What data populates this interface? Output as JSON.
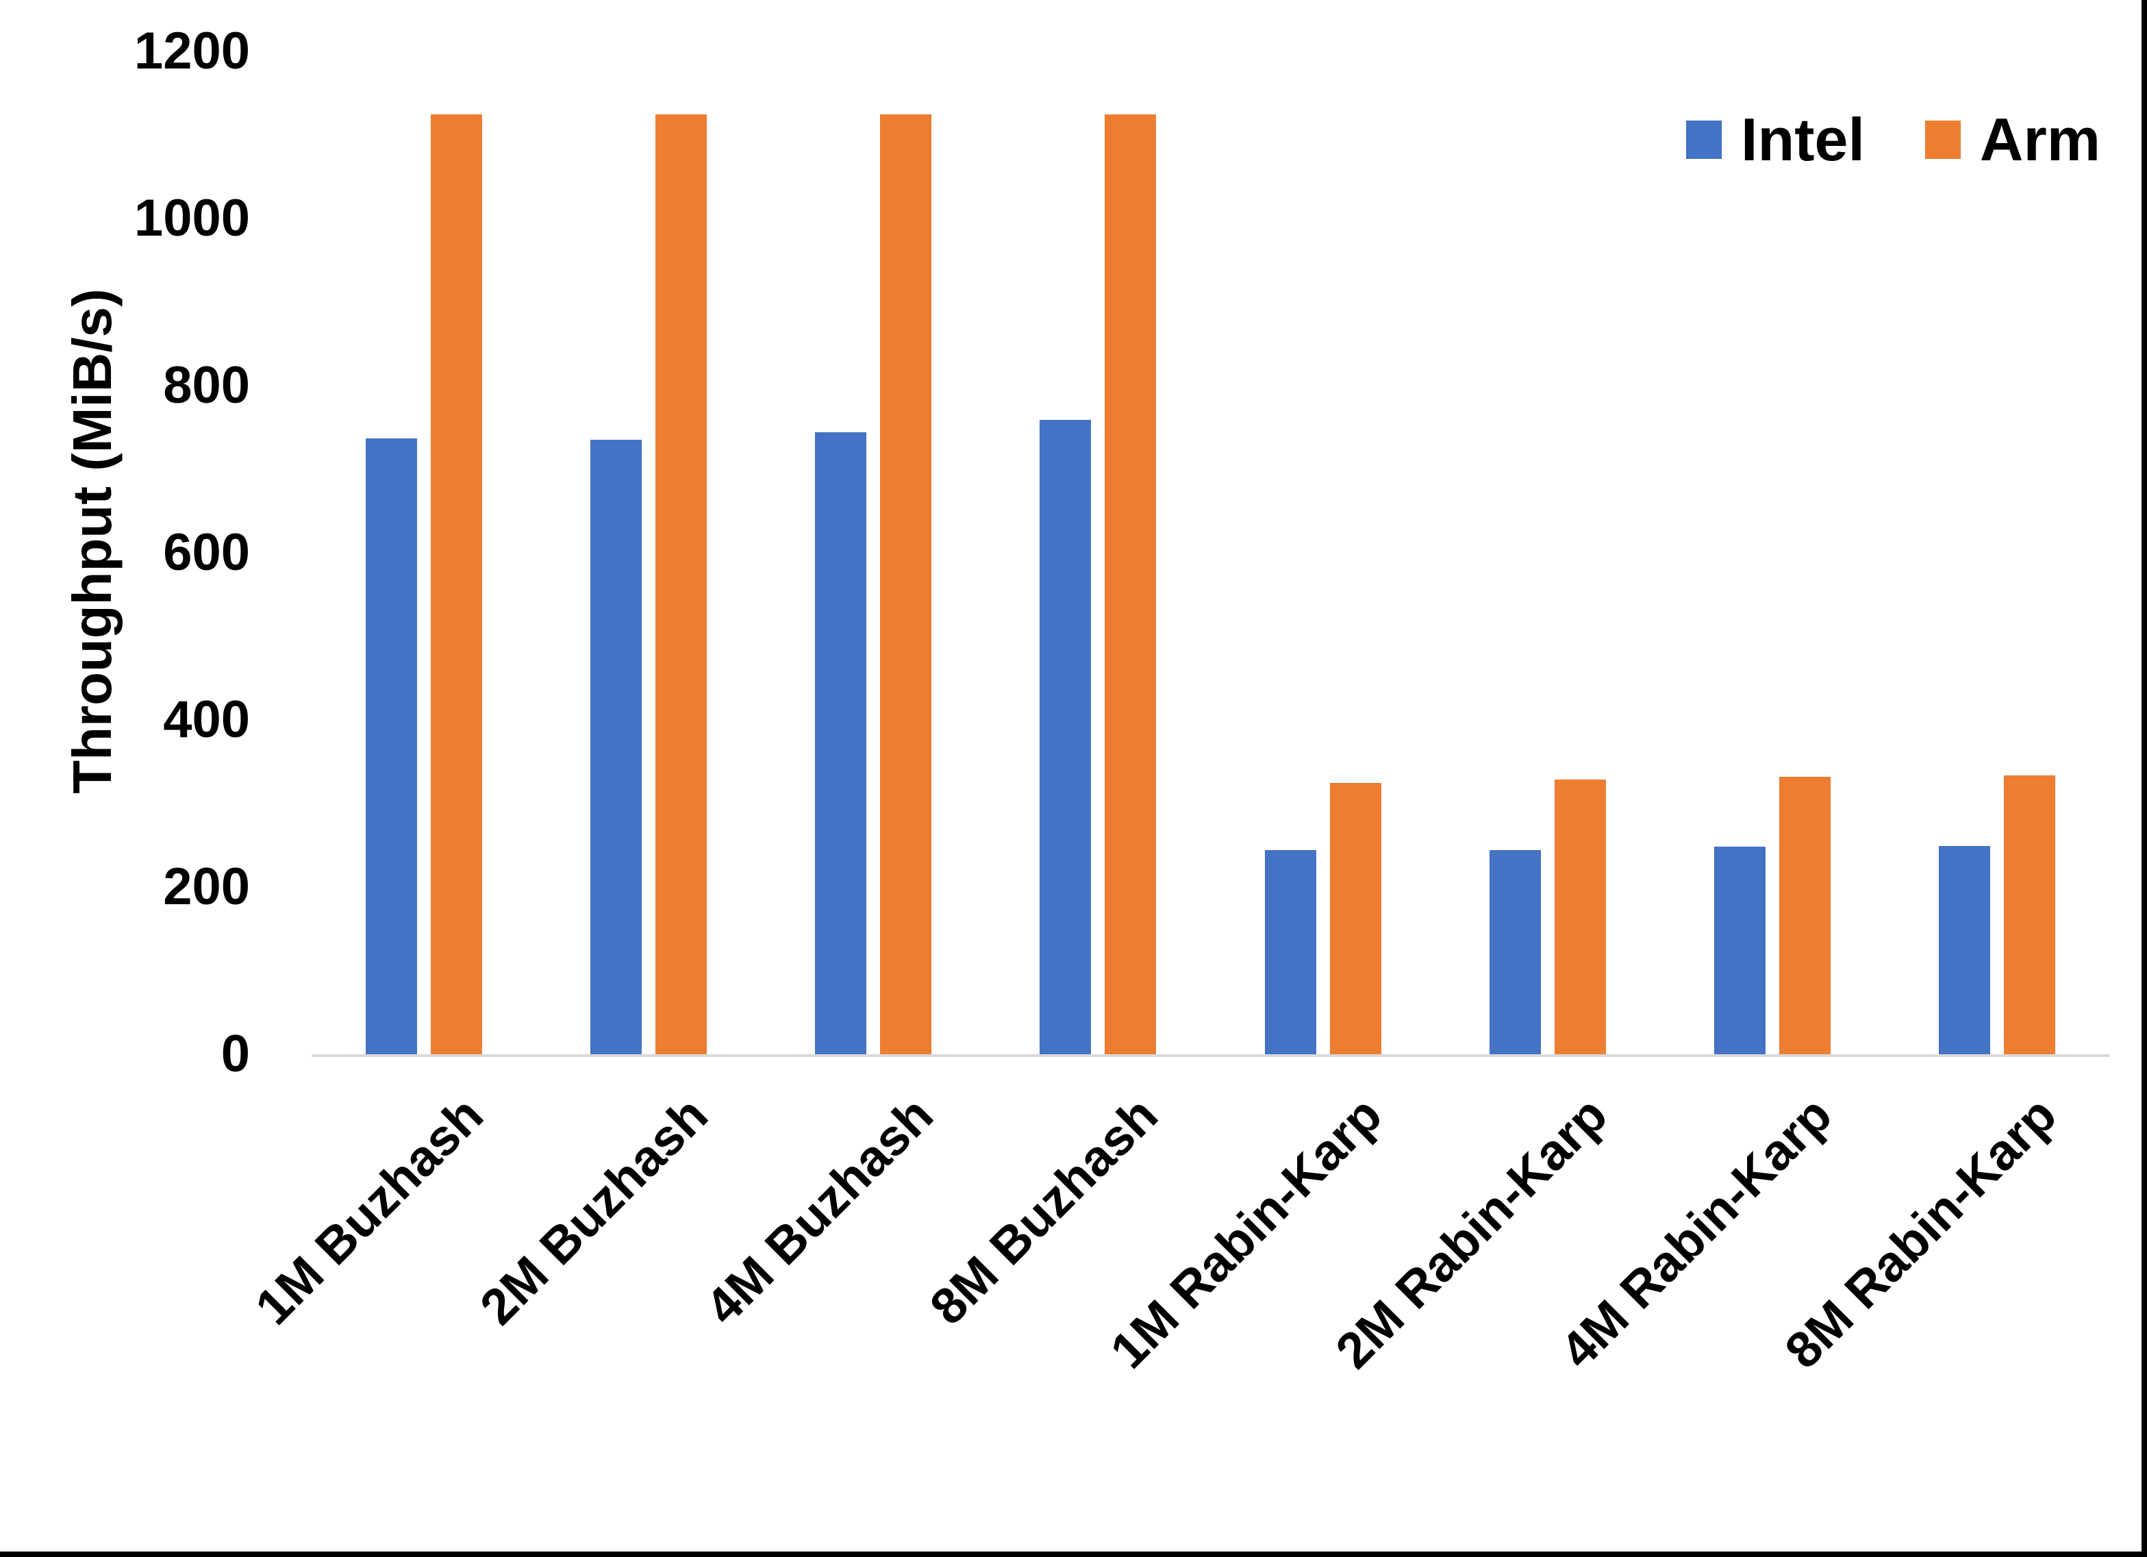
{
  "chart_data": {
    "type": "bar",
    "title": "",
    "categories": [
      "1M Buzhash",
      "2M Buzhash",
      "4M Buzhash",
      "8M Buzhash",
      "1M Rabin-Karp",
      "2M Rabin-Karp",
      "4M Rabin-Karp",
      "8M Rabin-Karp"
    ],
    "series": [
      {
        "name": "Intel",
        "color": "#4472C4",
        "values": [
          737,
          735,
          744,
          759,
          244,
          244,
          248,
          249
        ]
      },
      {
        "name": "Arm",
        "color": "#ED7D31",
        "values": [
          1125,
          1125,
          1125,
          1125,
          325,
          329,
          332,
          334
        ]
      }
    ],
    "xlabel": "",
    "ylabel": "Throughput (MiB/s)",
    "ylim": [
      0,
      1200
    ],
    "yticks": [
      0,
      200,
      400,
      600,
      800,
      1000,
      1200
    ],
    "grid": false,
    "legend_position": "top-right"
  },
  "colors": {
    "axis_line": "#D9D9D9",
    "text": "#000000",
    "background": "#FFFFFF",
    "frame_border": "#000000"
  }
}
